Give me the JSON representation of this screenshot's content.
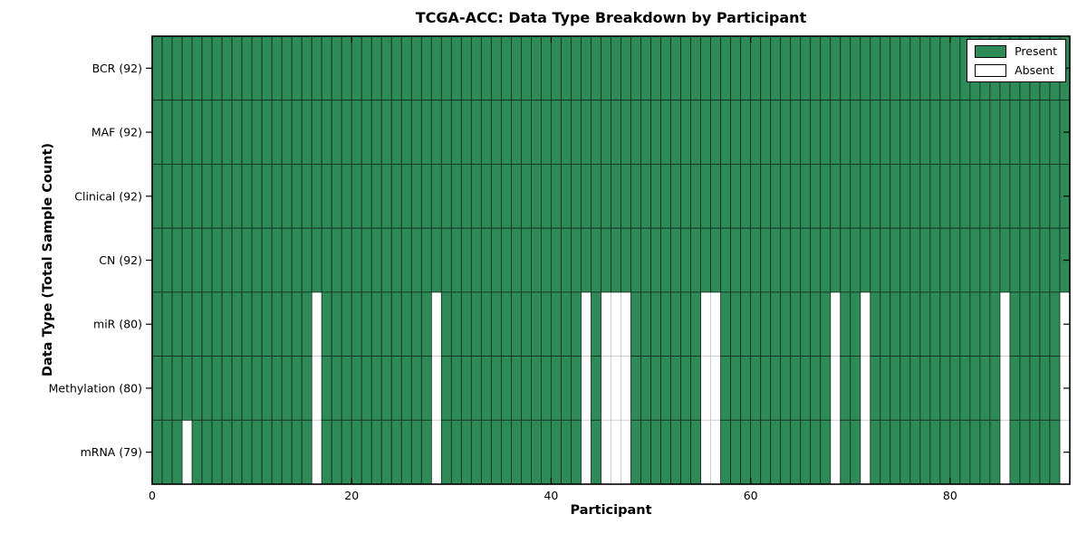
{
  "chart_data": {
    "type": "heatmap",
    "title": "TCGA-ACC: Data Type Breakdown by Participant",
    "xlabel": "Participant",
    "ylabel": "Data Type (Total Sample Count)",
    "n_participants": 92,
    "xlim": [
      0,
      92
    ],
    "xticks": [
      0,
      20,
      40,
      60,
      80
    ],
    "grid": false,
    "legend": {
      "position": "upper-right",
      "entries": [
        {
          "label": "Present",
          "color": "#2e8b57"
        },
        {
          "label": "Absent",
          "color": "#ffffff"
        }
      ]
    },
    "rows": [
      {
        "label": "BCR (92)",
        "name": "BCR",
        "present_count": 92,
        "absent_participants": []
      },
      {
        "label": "MAF (92)",
        "name": "MAF",
        "present_count": 92,
        "absent_participants": []
      },
      {
        "label": "Clinical (92)",
        "name": "Clinical",
        "present_count": 92,
        "absent_participants": []
      },
      {
        "label": "CN (92)",
        "name": "CN",
        "present_count": 92,
        "absent_participants": []
      },
      {
        "label": "miR (80)",
        "name": "miR",
        "present_count": 80,
        "absent_participants": [
          16,
          28,
          43,
          45,
          46,
          47,
          55,
          56,
          68,
          71,
          85,
          91
        ]
      },
      {
        "label": "Methylation (80)",
        "name": "Methylation",
        "present_count": 80,
        "absent_participants": [
          16,
          28,
          43,
          45,
          46,
          47,
          55,
          56,
          68,
          71,
          85,
          91
        ]
      },
      {
        "label": "mRNA (79)",
        "name": "mRNA",
        "present_count": 79,
        "absent_participants": [
          3,
          16,
          28,
          43,
          45,
          46,
          47,
          55,
          56,
          68,
          71,
          85,
          91
        ]
      }
    ],
    "colors": {
      "present": "#2e8b57",
      "absent": "#ffffff",
      "present_edge": "#0e2e1d",
      "absent_edge": "#c8c8c8",
      "spine": "#000000",
      "tick": "#000000",
      "text": "#000000"
    }
  }
}
